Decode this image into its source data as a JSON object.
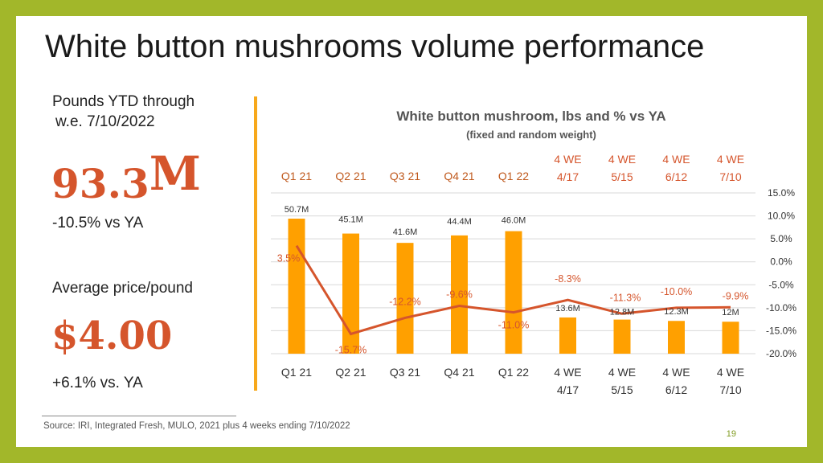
{
  "slide": {
    "title": "White button mushrooms volume performance",
    "pounds_label_line1": "Pounds YTD through",
    "pounds_label_line2": "w.e. 7/10/2022",
    "volume_value": "93.3",
    "volume_unit": "M",
    "volume_change": "-10.5% vs YA",
    "price_label": "Average price/pound",
    "price_value": "$4.00",
    "price_change": "+6.1% vs. YA",
    "source": "Source: IRI, Integrated Fresh, MULO, 2021 plus 4 weeks ending 7/10/2022",
    "page_number": "19"
  },
  "colors": {
    "bar": "#ffa000",
    "line": "#d5552c",
    "accent_text": "#d5552c",
    "grid": "#d9d9d9",
    "background": "#a2b72a"
  },
  "chart_data": {
    "type": "bar",
    "title": "White button mushroom, lbs and % vs YA",
    "subtitle": "(fixed and random weight)",
    "categories": [
      "Q1 21",
      "Q2 21",
      "Q3 21",
      "Q4 21",
      "Q1 22",
      "4 WE 4/17",
      "4 WE 5/15",
      "4 WE 6/12",
      "4 WE 7/10"
    ],
    "categories_top": [
      "Q1 21",
      "Q2 21",
      "Q3 21",
      "Q4 21",
      "Q1 22",
      "4 WE 4/17",
      "4 WE 5/15",
      "4 WE 6/12",
      "4 WE 7/10"
    ],
    "series": [
      {
        "type": "bar",
        "values": [
          50.7,
          45.1,
          41.6,
          44.4,
          46.0,
          13.6,
          12.8,
          12.3,
          12.0
        ],
        "labels": [
          "50.7M",
          "45.1M",
          "41.6M",
          "44.4M",
          "46.0M",
          "13.6M",
          "12.8M",
          "12.3M",
          "12M"
        ]
      },
      {
        "type": "line",
        "axis": "right",
        "values": [
          3.5,
          -15.7,
          -12.2,
          -9.6,
          -11.0,
          -8.3,
          -11.3,
          -10.0,
          -9.9
        ],
        "labels": [
          "3.5%",
          "-15.7%",
          "-12.2%",
          "-9.6%",
          "-11.0%",
          "-8.3%",
          "-11.3%",
          "-10.0%",
          "-9.9%"
        ]
      }
    ],
    "y2_ticks": [
      "15.0%",
      "10.0%",
      "5.0%",
      "0.0%",
      "-5.0%",
      "-10.0%",
      "-15.0%",
      "-20.0%"
    ],
    "y2lim": [
      -20,
      15
    ],
    "grid": true,
    "legend": "none"
  }
}
